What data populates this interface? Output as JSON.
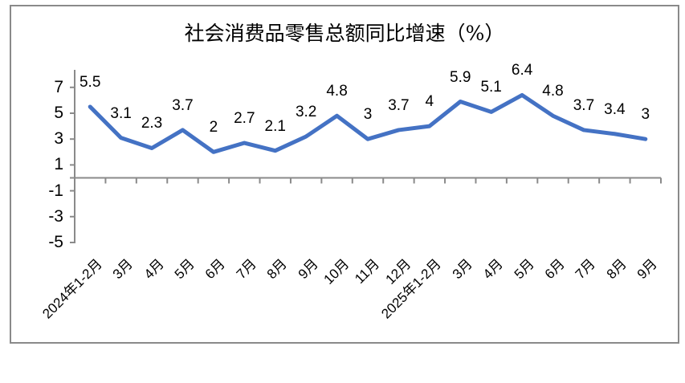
{
  "chart_data": {
    "type": "line",
    "title": "社会消费品零售总额同比增速（%）",
    "categories": [
      "2024年1-2月",
      "3月",
      "4月",
      "5月",
      "6月",
      "7月",
      "8月",
      "9月",
      "10月",
      "11月",
      "12月",
      "2025年1-2月",
      "3月",
      "4月",
      "5月",
      "6月",
      "7月",
      "8月",
      "9月"
    ],
    "values": [
      5.5,
      3.1,
      2.3,
      3.7,
      2,
      2.7,
      2.1,
      3.2,
      4.8,
      3,
      3.7,
      4,
      5.9,
      5.1,
      6.4,
      4.8,
      3.7,
      3.4,
      3
    ],
    "yticks": [
      7,
      5,
      3,
      1,
      -1,
      -3,
      -5
    ],
    "ylim": [
      -5,
      8
    ],
    "xlabel": "",
    "ylabel": "",
    "grid": false,
    "legend": null,
    "label_position": "above",
    "line_color": "#4472C4",
    "axis_color": "#8a8a8a",
    "text_color": "#000000",
    "frame_color": "#8a8a8a"
  }
}
